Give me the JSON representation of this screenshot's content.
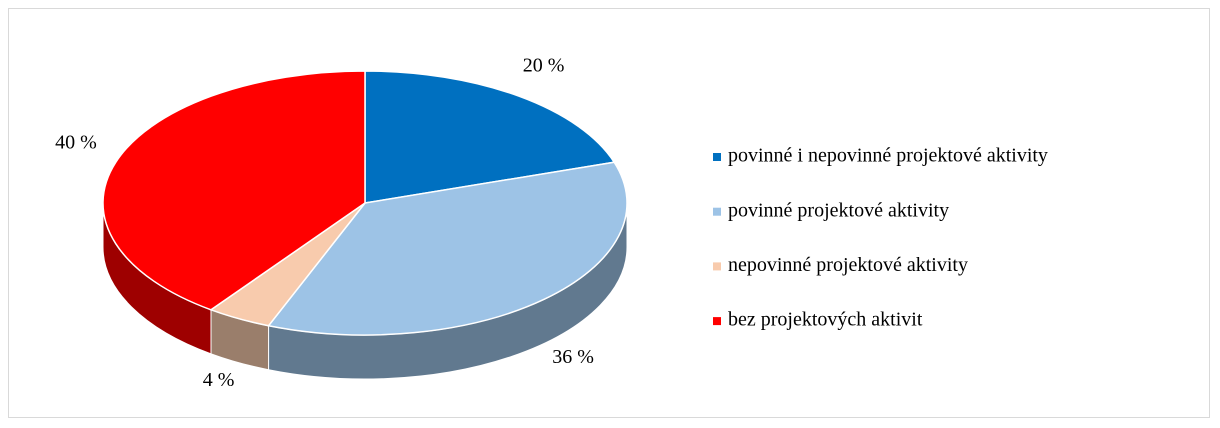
{
  "chart_data": {
    "type": "pie",
    "categories": [
      "povinné i nepovinné projektové aktivity",
      "povinné projektové aktivity",
      "nepovinné projektové aktivity",
      "bez projektových aktivit"
    ],
    "values": [
      20,
      36,
      4,
      40
    ],
    "value_labels": [
      "20 %",
      "36 %",
      "4 %",
      "40 %"
    ],
    "colors": [
      "#0070c0",
      "#9dc3e6",
      "#f8cbad",
      "#ff0000"
    ],
    "legend": "right"
  }
}
